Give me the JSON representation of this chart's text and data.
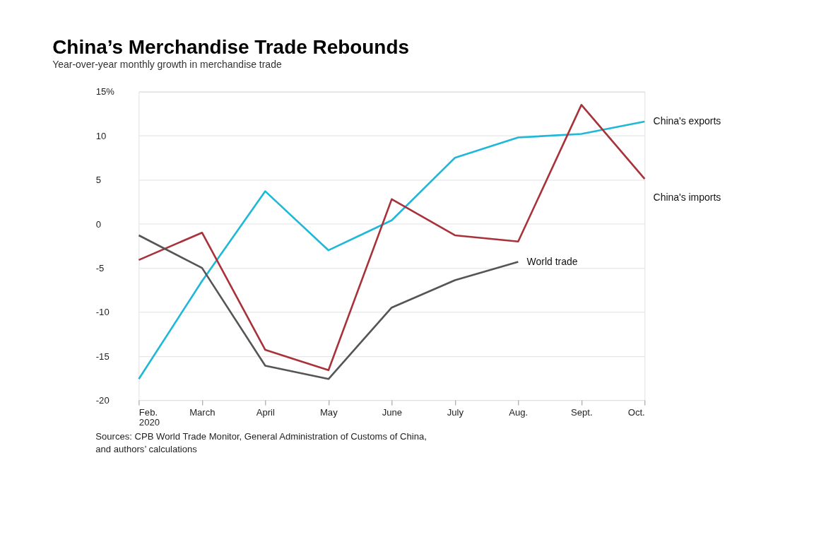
{
  "chart_data": {
    "type": "line",
    "title": "China’s Merchandise Trade Rebounds",
    "subtitle": "Year-over-year monthly growth in merchandise trade",
    "categories": [
      "Feb. 2020",
      "March",
      "April",
      "May",
      "June",
      "July",
      "Aug.",
      "Sept.",
      "Oct."
    ],
    "series": [
      {
        "name": "China's exports",
        "color": "#1fb8d8",
        "values": [
          -17.6,
          -6.5,
          3.7,
          -3.0,
          0.4,
          7.5,
          9.8,
          10.2,
          11.6
        ]
      },
      {
        "name": "China's imports",
        "color": "#a8323a",
        "values": [
          -4.1,
          -1.0,
          -14.3,
          -16.6,
          2.8,
          -1.3,
          -2.0,
          13.5,
          5.1
        ]
      },
      {
        "name": "World trade",
        "color": "#555555",
        "values": [
          -1.3,
          -5.0,
          -16.1,
          -17.6,
          -9.5,
          -6.4,
          -4.3,
          null,
          null
        ]
      }
    ],
    "ylim": [
      -20,
      15
    ],
    "yticks": [
      -20,
      -15,
      -10,
      -5,
      0,
      5,
      10,
      {
        "value": 15,
        "label": "15%"
      }
    ],
    "grid": "y",
    "marker": "none",
    "line_style": "solid",
    "annotations": [
      "Sources: CPB World Trade Monitor, General Administration of Customs of China, and authors’ calculations"
    ]
  }
}
